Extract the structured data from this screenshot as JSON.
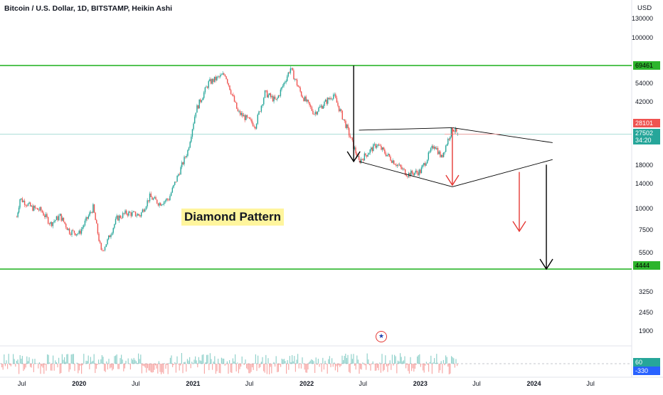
{
  "title": "Bitcoin / U.S. Dollar, 1D, BITSTAMP, Heikin Ashi",
  "currency": "USD",
  "colors": {
    "level_line": "#2db52d",
    "up_candle": "#26a69a",
    "down_candle": "#ef5350",
    "target_arrow_black": "#000000",
    "target_arrow_red": "#e53935",
    "pattern_line": "#000000"
  },
  "annotation_label": "Diamond Pattern",
  "price_badges": {
    "top_level": "69461",
    "high": "28101",
    "last": "27502",
    "countdown": "34:20",
    "bottom_level": "4444",
    "osc_a": "60",
    "osc_b": "-330"
  },
  "flag_icon": "us-flag-icon",
  "chart_data": {
    "type": "candlestick",
    "scale": "log",
    "y_ticks": [
      130000,
      100000,
      69461,
      54000,
      42000,
      28101,
      27502,
      18000,
      14000,
      10000,
      7500,
      5500,
      4444,
      3250,
      2450,
      1900
    ],
    "x_ticks": [
      "Jul",
      "2020",
      "Jul",
      "2021",
      "Jul",
      "2022",
      "Jul",
      "2023",
      "Jul",
      "2024",
      "Jul"
    ],
    "levels": [
      69461,
      4444
    ],
    "series_close": [
      [
        "2019-06-15",
        9000
      ],
      [
        "2019-06-25",
        11500
      ],
      [
        "2019-07-10",
        11000
      ],
      [
        "2019-08-01",
        10200
      ],
      [
        "2019-09-01",
        9800
      ],
      [
        "2019-10-01",
        8200
      ],
      [
        "2019-11-01",
        9100
      ],
      [
        "2019-12-01",
        7400
      ],
      [
        "2020-01-01",
        7200
      ],
      [
        "2020-02-15",
        10200
      ],
      [
        "2020-03-12",
        5600
      ],
      [
        "2020-04-01",
        6500
      ],
      [
        "2020-05-01",
        8800
      ],
      [
        "2020-06-01",
        9500
      ],
      [
        "2020-07-15",
        9200
      ],
      [
        "2020-08-15",
        11800
      ],
      [
        "2020-09-15",
        10800
      ],
      [
        "2020-10-15",
        11500
      ],
      [
        "2020-11-15",
        16000
      ],
      [
        "2020-12-15",
        22000
      ],
      [
        "2021-01-10",
        38000
      ],
      [
        "2021-02-20",
        55000
      ],
      [
        "2021-04-14",
        62000
      ],
      [
        "2021-05-25",
        37000
      ],
      [
        "2021-07-20",
        31000
      ],
      [
        "2021-08-20",
        48000
      ],
      [
        "2021-09-25",
        43000
      ],
      [
        "2021-11-10",
        67000
      ],
      [
        "2021-12-15",
        47000
      ],
      [
        "2022-01-25",
        36500
      ],
      [
        "2022-03-28",
        47000
      ],
      [
        "2022-05-10",
        30000
      ],
      [
        "2022-06-18",
        19000
      ],
      [
        "2022-08-14",
        24000
      ],
      [
        "2022-10-01",
        19500
      ],
      [
        "2022-11-21",
        16000
      ],
      [
        "2023-01-01",
        16600
      ],
      [
        "2023-02-15",
        24000
      ],
      [
        "2023-03-10",
        20000
      ],
      [
        "2023-04-14",
        30000
      ],
      [
        "2023-05-01",
        27502
      ]
    ],
    "diamond_pattern": {
      "left": [
        "2022-06-18",
        19000
      ],
      "top": [
        "2023-04-14",
        30000
      ],
      "bottom": [
        "2023-04-14",
        13500
      ],
      "right": [
        "2024-03-01",
        19500
      ]
    },
    "target_arrows": [
      {
        "color": "black",
        "from": [
          "2022-06-01",
          69461
        ],
        "to": [
          "2022-06-01",
          19000
        ]
      },
      {
        "color": "red",
        "from": [
          "2023-04-14",
          30000
        ],
        "to": [
          "2023-04-14",
          13800
        ]
      },
      {
        "color": "red",
        "from": [
          "2023-11-15",
          16500
        ],
        "to": [
          "2023-11-15",
          7400
        ]
      },
      {
        "color": "black",
        "from": [
          "2024-02-10",
          18200
        ],
        "to": [
          "2024-02-10",
          4444
        ]
      }
    ]
  }
}
